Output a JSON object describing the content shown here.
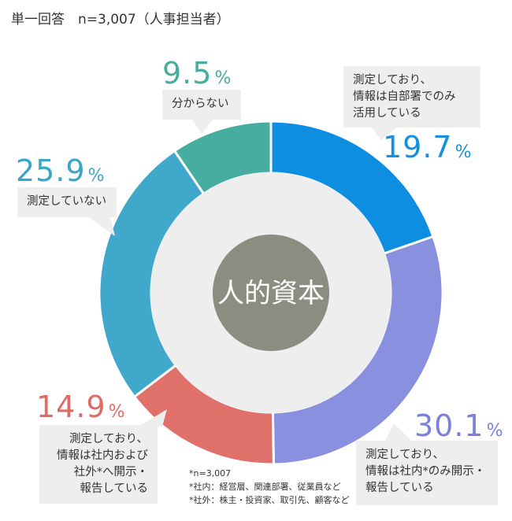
{
  "subtitle": "単一回答　n=3,007（人事担当者）",
  "chart_data": {
    "type": "pie",
    "center_label": "人的資本",
    "slices": [
      {
        "value": 19.7,
        "label_lines": [
          "測定しており、",
          "情報は自部署でのみ",
          "活用している"
        ],
        "color": "#0d8ee0"
      },
      {
        "value": 30.1,
        "label_lines": [
          "測定しており、",
          "情報は社内*のみ開示・",
          "報告している"
        ],
        "color": "#8a90e0"
      },
      {
        "value": 14.9,
        "label_lines": [
          "測定しており、",
          "情報は社内および",
          "社外*へ開示・",
          "報告している"
        ],
        "color": "#e0706a"
      },
      {
        "value": 25.9,
        "label_lines": [
          "測定していない"
        ],
        "color": "#3fa8cb"
      },
      {
        "value": 9.5,
        "label_lines": [
          "分からない"
        ],
        "color": "#47ada0"
      }
    ],
    "percent_unit": "%"
  },
  "notes": [
    "*n=3,007",
    "*社内：経営層、関連部署、従業員など",
    "*社外：株主・投資家、取引先、顧客など"
  ],
  "colors": {
    "inner_disc": "#eeeeee",
    "center_circle": "#8d8c80",
    "pct_19_7": "#1490e0",
    "pct_30_1": "#7a80dc",
    "pct_14_9": "#e06a64",
    "pct_25_9": "#3aa5c8",
    "pct_9_5": "#47ad9f"
  }
}
